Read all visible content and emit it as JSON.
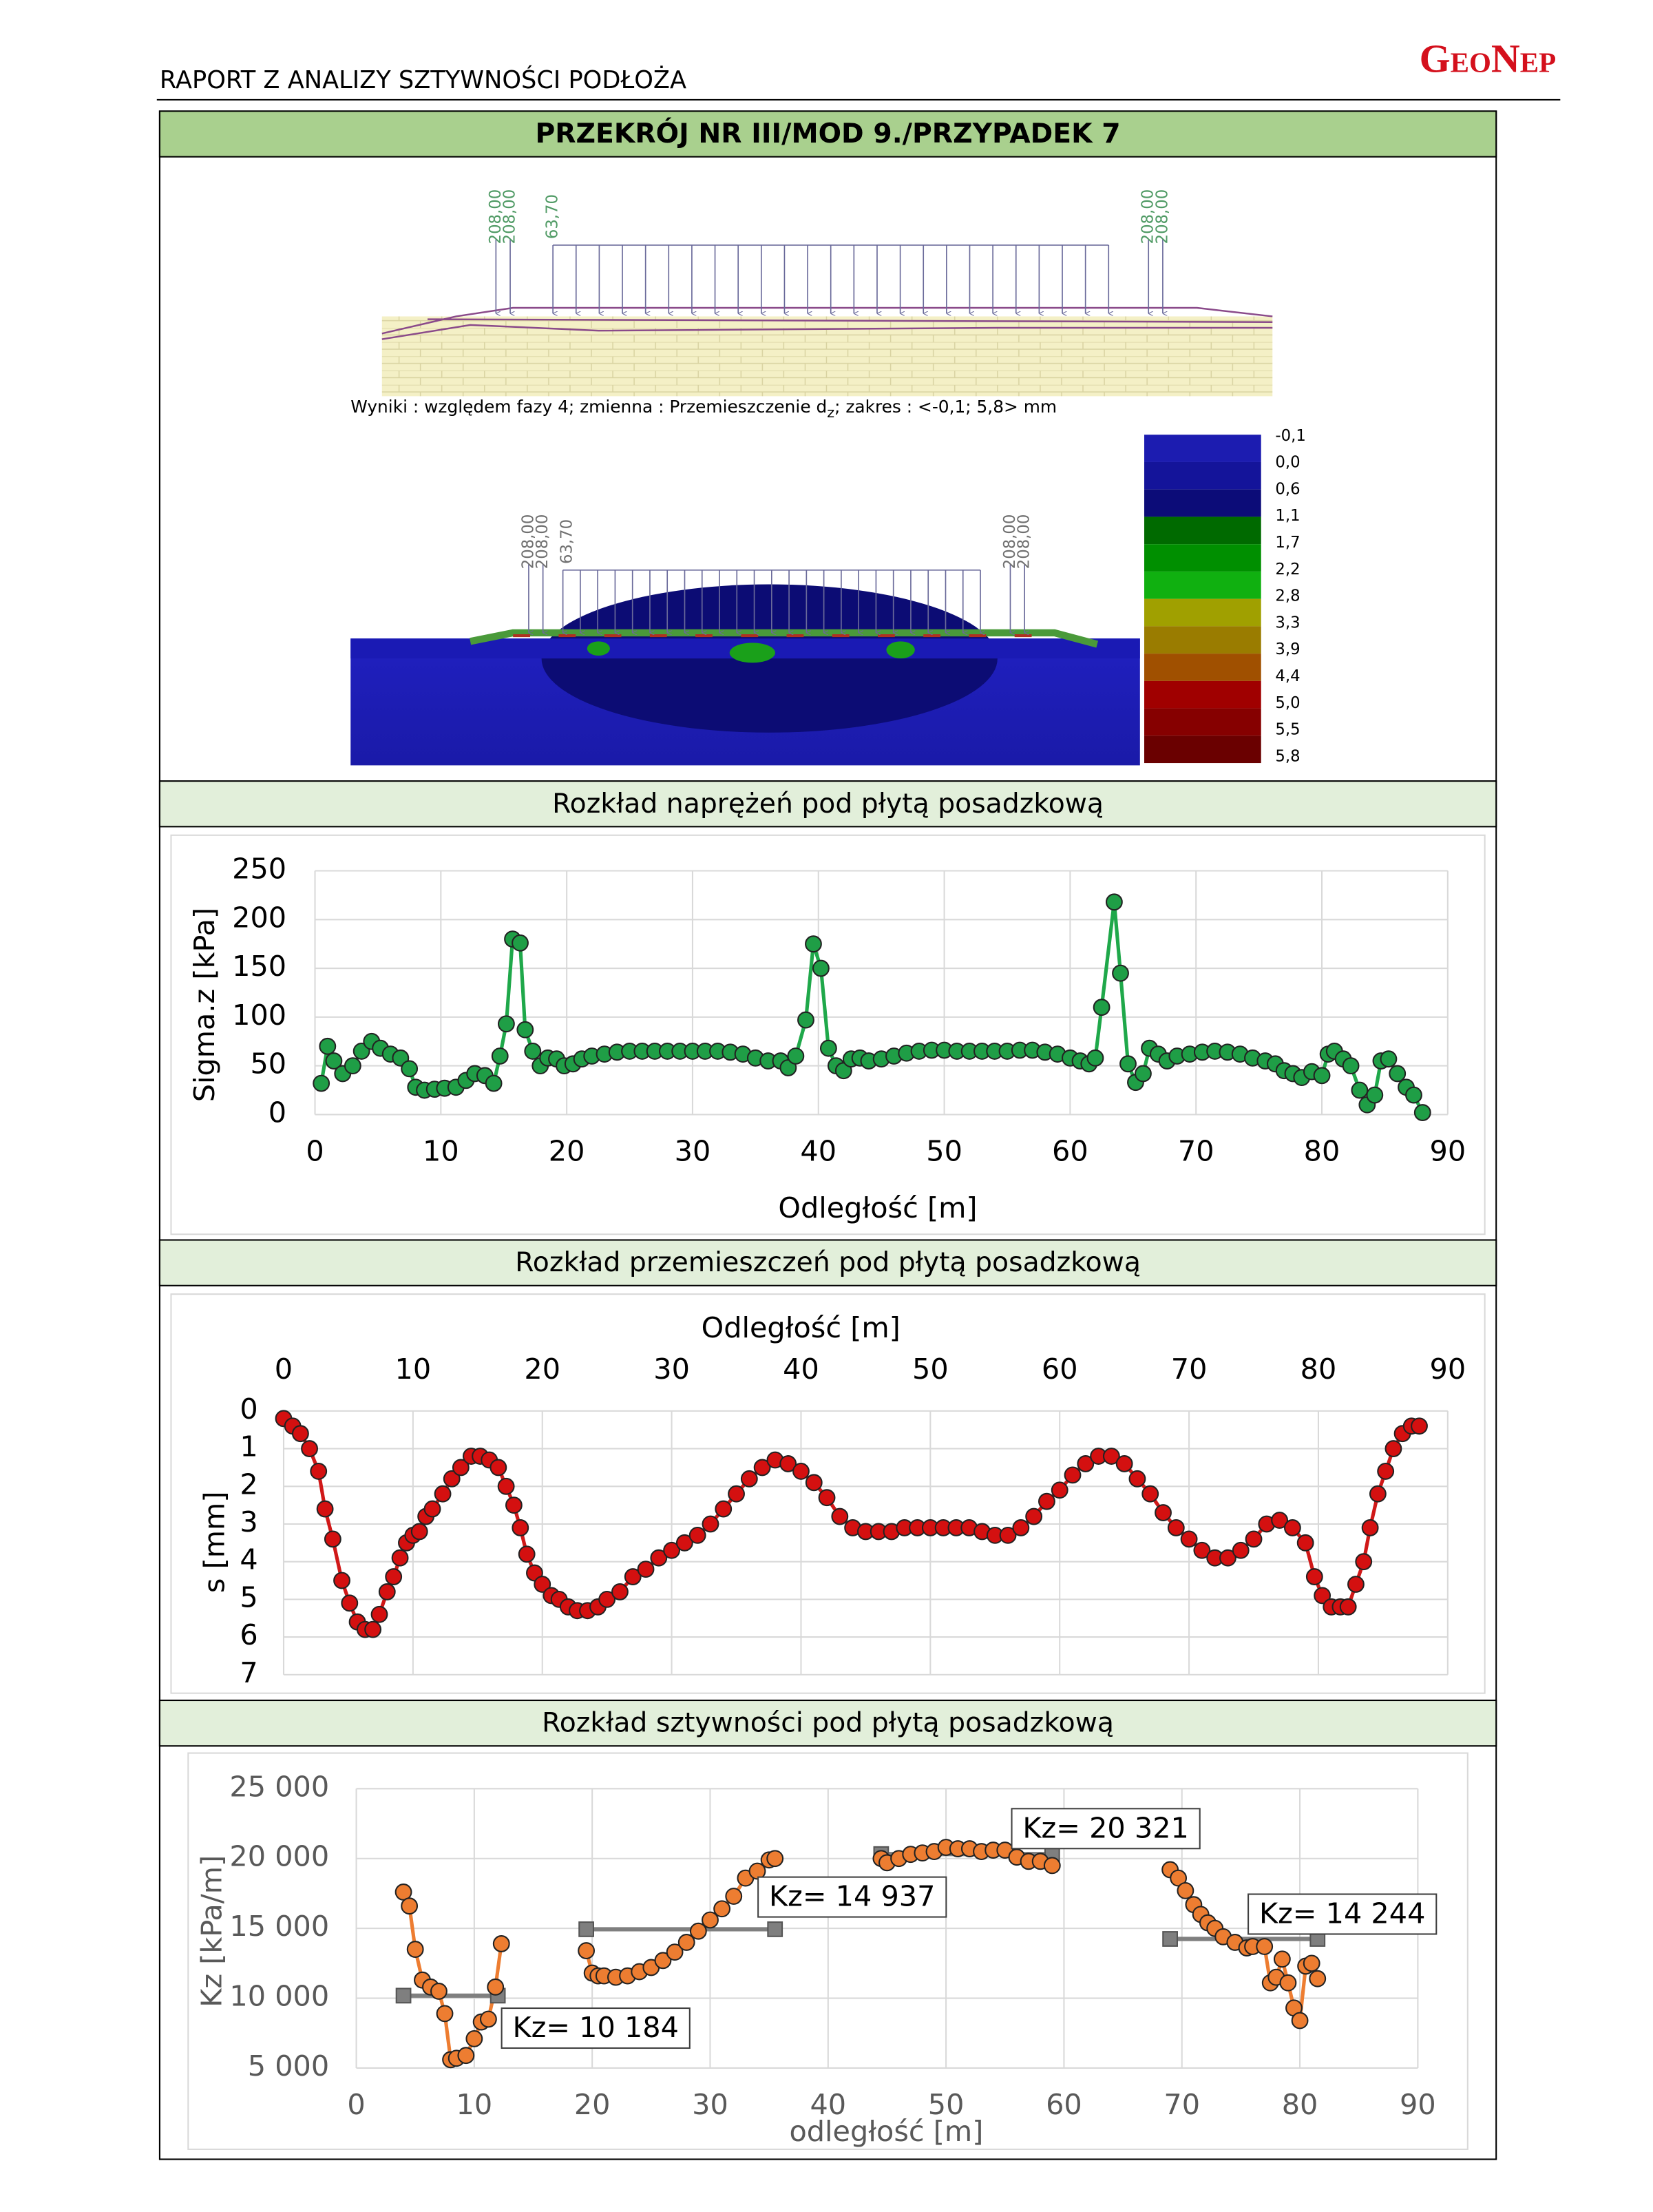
{
  "header": {
    "title": "RAPORT Z ANALIZY SZTYWNOŚCI PODŁOŻA",
    "logo": "GeoNep"
  },
  "panel_title": "PRZEKRÓJ NR III/MOD 9./PRZYPADEK 7",
  "fem": {
    "top_load_labels": [
      "208,00",
      "208,00",
      "63,70",
      "208,00",
      "208,00"
    ],
    "caption": [
      "Wyniki : względem fazy 4; zmienna : Przemieszczenie d",
      "z",
      "; zakres : <-0,1; 5,8> mm"
    ],
    "bottom_load_labels": [
      "208,00",
      "208,00",
      "63,70",
      "208,00",
      "208,00"
    ],
    "legend_labels": [
      "-0,1",
      "0,0",
      "0,6",
      "1,1",
      "1,7",
      "2,2",
      "2,8",
      "3,3",
      "3,9",
      "4,4",
      "5,0",
      "5,5",
      "5,8"
    ],
    "legend_colors": [
      "#1c1cb0",
      "#14149a",
      "#0c0c78",
      "#006a00",
      "#008f00",
      "#10b010",
      "#a0a000",
      "#9a7c00",
      "#a05000",
      "#a00000",
      "#860000",
      "#6a0000"
    ]
  },
  "chart_data": [
    {
      "type": "line",
      "title": "Rozkład naprężeń pod płytą posadzkową",
      "x_label": "Odległość [m]",
      "y_label": "Sigma.z [kPa]",
      "xlim": [
        0,
        90
      ],
      "xticks": [
        0,
        10,
        20,
        30,
        40,
        50,
        60,
        70,
        80,
        90
      ],
      "ylim": [
        0,
        250
      ],
      "yticks": [
        0,
        50,
        100,
        150,
        200,
        250
      ],
      "grid": true,
      "x_axis_position": "bottom",
      "y_reversed": false,
      "line_color": "#1fa84a",
      "marker_color": "#1f9e46",
      "x": [
        0.5,
        1,
        1.5,
        2.2,
        3,
        3.7,
        4.5,
        5.2,
        6,
        6.8,
        7.5,
        8,
        8.7,
        9.5,
        10.3,
        11.2,
        12,
        12.7,
        13.5,
        14.2,
        14.7,
        15.2,
        15.7,
        16.3,
        16.7,
        17.3,
        17.9,
        18.5,
        19.2,
        19.8,
        20.5,
        21.2,
        22,
        23,
        24,
        25,
        26,
        27,
        28,
        29,
        30,
        31,
        32,
        33,
        34,
        35,
        36,
        37,
        37.6,
        38.2,
        39,
        39.6,
        40.2,
        40.8,
        41.4,
        42,
        42.6,
        43.3,
        44,
        45,
        46,
        47,
        48,
        49,
        50,
        51,
        52,
        53,
        54,
        55,
        56,
        57,
        58,
        59,
        60,
        60.8,
        61.5,
        62,
        62.5,
        63.5,
        64,
        64.6,
        65.2,
        65.8,
        66.3,
        67,
        67.7,
        68.5,
        69.5,
        70.5,
        71.5,
        72.5,
        73.5,
        74.5,
        75.5,
        76.3,
        77,
        77.7,
        78.4,
        79.2,
        80,
        80.5,
        81,
        81.7,
        82.3,
        83,
        83.6,
        84.2,
        84.7,
        85.3,
        86,
        86.7,
        87.3,
        88
      ],
      "values": [
        32,
        70,
        55,
        42,
        50,
        65,
        75,
        68,
        62,
        58,
        47,
        28,
        25,
        26,
        27,
        28,
        35,
        42,
        40,
        32,
        60,
        93,
        180,
        176,
        87,
        65,
        50,
        58,
        57,
        50,
        52,
        57,
        60,
        62,
        64,
        65,
        65,
        65,
        65,
        65,
        65,
        65,
        65,
        64,
        62,
        58,
        55,
        55,
        48,
        60,
        97,
        175,
        150,
        68,
        50,
        45,
        57,
        58,
        55,
        57,
        60,
        63,
        65,
        66,
        66,
        65,
        65,
        65,
        65,
        65,
        66,
        66,
        64,
        62,
        58,
        55,
        52,
        58,
        110,
        218,
        145,
        52,
        33,
        42,
        68,
        62,
        55,
        60,
        62,
        64,
        65,
        64,
        62,
        58,
        55,
        52,
        45,
        42,
        38,
        44,
        40,
        62,
        65,
        57,
        50,
        25,
        10,
        20,
        55,
        57,
        42,
        28,
        20,
        2
      ]
    },
    {
      "type": "line",
      "title": "Rozkład przemieszczeń pod płytą posadzkową",
      "x_label": "Odległość [m]",
      "y_label": "s [mm]",
      "xlim": [
        0,
        90
      ],
      "xticks": [
        0,
        10,
        20,
        30,
        40,
        50,
        60,
        70,
        80,
        90
      ],
      "ylim": [
        0,
        7
      ],
      "yticks": [
        0,
        1,
        2,
        3,
        4,
        5,
        6,
        7
      ],
      "grid": true,
      "x_axis_position": "top",
      "y_reversed": true,
      "line_color": "#d01818",
      "marker_color": "#d41010",
      "x": [
        0,
        0.7,
        1.3,
        2,
        2.7,
        3.2,
        3.8,
        4.5,
        5.1,
        5.7,
        6.3,
        6.9,
        7.4,
        8,
        8.5,
        9,
        9.5,
        10,
        10.5,
        11,
        11.5,
        12.3,
        13,
        13.7,
        14.5,
        15.2,
        15.9,
        16.6,
        17.2,
        17.8,
        18.3,
        18.8,
        19.4,
        20,
        20.7,
        21.3,
        22,
        22.7,
        23.5,
        24.3,
        25,
        26,
        27,
        28,
        29,
        30,
        31,
        32,
        33,
        34,
        35,
        36,
        37,
        38,
        39,
        40,
        41,
        42,
        43,
        44,
        45,
        46,
        47,
        48,
        49,
        50,
        51,
        52,
        53,
        54,
        55,
        56,
        57,
        58,
        59,
        60,
        61,
        62,
        63,
        64,
        65,
        66,
        67,
        68,
        69,
        70,
        71,
        72,
        73,
        74,
        75,
        76,
        77,
        78,
        79,
        79.7,
        80.3,
        81,
        81.7,
        82.3,
        82.9,
        83.5,
        84,
        84.6,
        85.2,
        85.8,
        86.5,
        87.2,
        87.8
      ],
      "values": [
        0.2,
        0.4,
        0.6,
        1,
        1.6,
        2.6,
        3.4,
        4.5,
        5.1,
        5.6,
        5.8,
        5.8,
        5.4,
        4.8,
        4.4,
        3.9,
        3.5,
        3.3,
        3.2,
        2.8,
        2.6,
        2.2,
        1.8,
        1.5,
        1.2,
        1.2,
        1.3,
        1.5,
        2,
        2.5,
        3.1,
        3.8,
        4.3,
        4.6,
        4.9,
        5,
        5.2,
        5.3,
        5.3,
        5.2,
        5,
        4.8,
        4.4,
        4.2,
        3.9,
        3.7,
        3.5,
        3.3,
        3,
        2.6,
        2.2,
        1.8,
        1.5,
        1.3,
        1.4,
        1.6,
        1.9,
        2.3,
        2.8,
        3.1,
        3.2,
        3.2,
        3.2,
        3.1,
        3.1,
        3.1,
        3.1,
        3.1,
        3.1,
        3.2,
        3.3,
        3.3,
        3.1,
        2.8,
        2.4,
        2.1,
        1.7,
        1.4,
        1.2,
        1.2,
        1.4,
        1.8,
        2.2,
        2.7,
        3.1,
        3.4,
        3.7,
        3.9,
        3.9,
        3.7,
        3.4,
        3,
        2.9,
        3.1,
        3.5,
        4.4,
        4.9,
        5.2,
        5.2,
        5.2,
        4.6,
        4,
        3.1,
        2.2,
        1.6,
        1,
        0.6,
        0.4,
        0.4
      ]
    },
    {
      "type": "line",
      "title": "Rozkład sztywności pod płytą posadzkową",
      "x_label": "odległość [m]",
      "y_label": "Kz [kPa/m]",
      "xlim": [
        0,
        90
      ],
      "xticks": [
        0,
        10,
        20,
        30,
        40,
        50,
        60,
        70,
        80,
        90
      ],
      "ylim": [
        5000,
        25000
      ],
      "yticks": [
        {
          "value": 5000,
          "label": "5 000"
        },
        {
          "value": 10000,
          "label": "10 000"
        },
        {
          "value": 15000,
          "label": "15 000"
        },
        {
          "value": 20000,
          "label": "20 000"
        },
        {
          "value": 25000,
          "label": "25 000"
        }
      ],
      "grid": true,
      "x_axis_position": "bottom",
      "y_reversed": false,
      "line_color": "#ed7d31",
      "marker_color": "#ed7d31",
      "average_color": "#7f7f7f",
      "x": [
        4,
        4.5,
        5,
        5.6,
        6.3,
        7,
        7.5,
        8,
        8.5,
        9.3,
        10,
        10.6,
        11.2,
        11.8,
        12.3,
        null,
        19.5,
        20,
        20.5,
        21,
        22,
        23,
        24,
        25,
        26,
        27,
        28,
        29,
        30,
        31,
        32,
        33,
        34,
        35,
        35.5,
        null,
        44.5,
        45,
        46,
        47,
        48,
        49,
        50,
        51,
        52,
        53,
        54,
        55,
        56,
        57,
        58,
        59,
        null,
        69,
        69.7,
        70.3,
        71,
        71.6,
        72.2,
        72.8,
        73.5,
        74.5,
        75.5,
        76,
        77,
        77.5,
        78,
        78.5,
        79,
        79.5,
        80,
        80.5,
        81,
        81.5
      ],
      "values": [
        17600,
        16600,
        13500,
        11300,
        10800,
        10500,
        8900,
        5600,
        5700,
        5900,
        7100,
        8300,
        8500,
        10800,
        13900,
        null,
        13400,
        11800,
        11600,
        11600,
        11500,
        11600,
        11900,
        12200,
        12700,
        13300,
        14000,
        14800,
        15600,
        16400,
        17300,
        18600,
        19100,
        19900,
        20000,
        null,
        20000,
        19700,
        20000,
        20300,
        20400,
        20500,
        20800,
        20700,
        20700,
        20500,
        20600,
        20600,
        20100,
        19800,
        19800,
        19500,
        null,
        19200,
        18600,
        17700,
        16700,
        16000,
        15400,
        15000,
        14400,
        14000,
        13600,
        13700,
        13700,
        11100,
        11500,
        12800,
        11100,
        9300,
        8400,
        12300,
        12500,
        11400
      ],
      "averages": [
        {
          "x": [
            4,
            12
          ],
          "value": 10184,
          "label": "Kz= 10 184"
        },
        {
          "x": [
            19.5,
            35.5
          ],
          "value": 14937,
          "label": "Kz= 14 937"
        },
        {
          "x": [
            44.5,
            59
          ],
          "value": 20321,
          "label": "Kz= 20 321"
        },
        {
          "x": [
            69,
            81.5
          ],
          "value": 14244,
          "label": "Kz= 14 244"
        }
      ]
    }
  ]
}
